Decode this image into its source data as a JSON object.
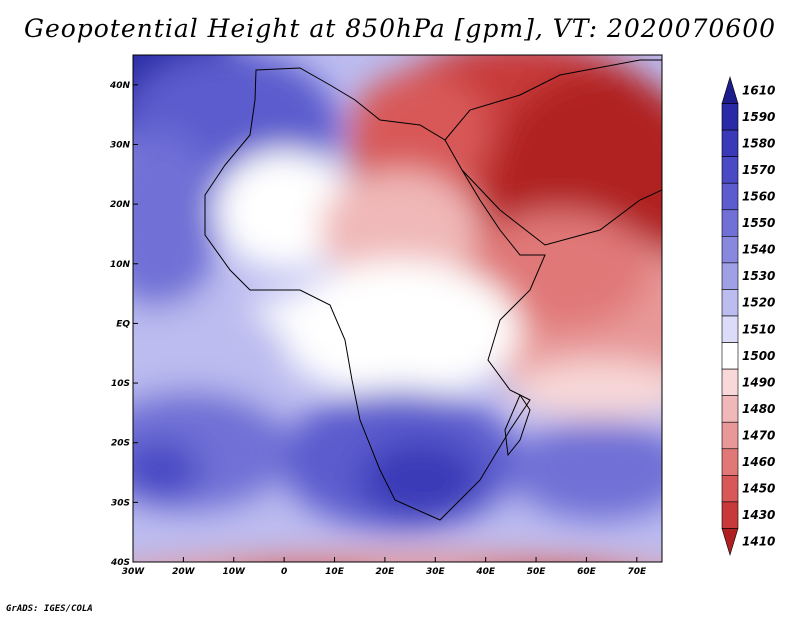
{
  "title": "Geopotential Height at 850hPa [gpm], VT: 2020070600",
  "credit": "GrADS: IGES/COLA",
  "map": {
    "lon_range": [
      -30,
      75
    ],
    "lat_range": [
      -40,
      45
    ],
    "x_ticks": [
      "30W",
      "20W",
      "10W",
      "0",
      "10E",
      "20E",
      "30E",
      "40E",
      "50E",
      "60E",
      " 70E"
    ],
    "y_ticks": [
      "40S",
      "30S",
      "20S",
      "10S",
      "EQ",
      "10N",
      "20N",
      "30N",
      "40N"
    ],
    "y_tick_lats": [
      -40,
      -30,
      -20,
      -10,
      0,
      10,
      20,
      30,
      40
    ],
    "x_tick_lons": [
      -30,
      -20,
      -10,
      0,
      10,
      20,
      30,
      40,
      50,
      60,
      70
    ]
  },
  "colorbar": {
    "labels": [
      "1610",
      "1590",
      "1580",
      "1570",
      "1560",
      "1550",
      "1540",
      "1530",
      "1520",
      "1510",
      "1500",
      "1490",
      "1480",
      "1470",
      "1460",
      "1450",
      "1430",
      "1410"
    ],
    "colors": [
      "#1c1c8c",
      "#2a2aa6",
      "#3a3ab8",
      "#4a4ac4",
      "#5c5cce",
      "#7070d6",
      "#8888de",
      "#a0a0e6",
      "#bcbcf0",
      "#dcdcf8",
      "#ffffff",
      "#f8d8d8",
      "#f0b8b8",
      "#e89898",
      "#e07878",
      "#d85858",
      "#c83a3a",
      "#b02020"
    ]
  }
}
